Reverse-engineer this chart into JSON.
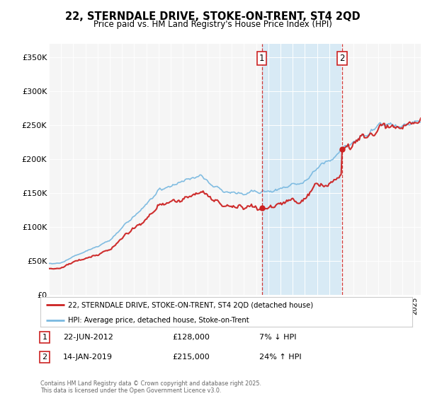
{
  "title": "22, STERNDALE DRIVE, STOKE-ON-TRENT, ST4 2QD",
  "subtitle": "Price paid vs. HM Land Registry's House Price Index (HPI)",
  "sale1_date": "22-JUN-2012",
  "sale1_price": 128000,
  "sale1_label": "1",
  "sale1_hpi_diff": "7% ↓ HPI",
  "sale2_date": "14-JAN-2019",
  "sale2_price": 215000,
  "sale2_label": "2",
  "sale2_hpi_diff": "24% ↑ HPI",
  "ylim": [
    0,
    370000
  ],
  "yticks": [
    0,
    50000,
    100000,
    150000,
    200000,
    250000,
    300000,
    350000
  ],
  "ytick_labels": [
    "£0",
    "£50K",
    "£100K",
    "£150K",
    "£200K",
    "£250K",
    "£300K",
    "£350K"
  ],
  "hpi_color": "#7ab9e0",
  "price_color": "#cc2222",
  "vline_color": "#cc2222",
  "shade_color": "#d8eaf5",
  "background_color": "#ffffff",
  "plot_bg_color": "#f5f5f5",
  "grid_color": "#ffffff",
  "legend_label_price": "22, STERNDALE DRIVE, STOKE-ON-TRENT, ST4 2QD (detached house)",
  "legend_label_hpi": "HPI: Average price, detached house, Stoke-on-Trent",
  "footer_text": "Contains HM Land Registry data © Crown copyright and database right 2025.\nThis data is licensed under the Open Government Licence v3.0.",
  "start_year": 1995,
  "end_year": 2025
}
